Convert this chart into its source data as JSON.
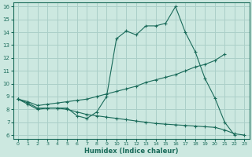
{
  "xlabel": "Humidex (Indice chaleur)",
  "bg_color": "#cce8e0",
  "grid_color": "#aacfc8",
  "line_color": "#1a6b5a",
  "xlim": [
    -0.5,
    23.5
  ],
  "ylim": [
    5.7,
    16.3
  ],
  "xticks": [
    0,
    1,
    2,
    3,
    4,
    5,
    6,
    7,
    8,
    9,
    10,
    11,
    12,
    13,
    14,
    15,
    16,
    17,
    18,
    19,
    20,
    21,
    22,
    23
  ],
  "yticks": [
    6,
    7,
    8,
    9,
    10,
    11,
    12,
    13,
    14,
    15,
    16
  ],
  "line1_x": [
    0,
    1,
    2,
    3,
    4,
    5,
    6,
    7,
    8,
    9,
    10,
    11,
    12,
    13,
    14,
    15,
    16,
    17,
    18,
    19,
    20,
    21,
    22
  ],
  "line1_y": [
    8.8,
    8.4,
    8.0,
    8.1,
    8.1,
    8.1,
    7.5,
    7.3,
    7.8,
    9.0,
    13.5,
    14.1,
    13.8,
    14.5,
    14.5,
    14.7,
    16.0,
    14.0,
    12.5,
    10.4,
    8.9,
    7.0,
    6.0
  ],
  "line2_x": [
    0,
    1,
    2,
    3,
    4,
    5,
    6,
    7,
    8,
    9,
    10,
    11,
    12,
    13,
    14,
    15,
    16,
    17,
    18,
    19,
    20,
    21
  ],
  "line2_y": [
    8.8,
    8.6,
    8.3,
    8.4,
    8.5,
    8.6,
    8.7,
    8.8,
    9.0,
    9.2,
    9.4,
    9.6,
    9.8,
    10.1,
    10.3,
    10.5,
    10.7,
    11.0,
    11.3,
    11.5,
    11.8,
    12.3
  ],
  "line3_x": [
    0,
    1,
    2,
    3,
    4,
    5,
    6,
    7,
    8,
    9,
    10,
    11,
    12,
    13,
    14,
    15,
    16,
    17,
    18,
    19,
    20,
    21,
    22,
    23
  ],
  "line3_y": [
    8.8,
    8.5,
    8.1,
    8.1,
    8.1,
    8.0,
    7.8,
    7.6,
    7.5,
    7.4,
    7.3,
    7.2,
    7.1,
    7.0,
    6.9,
    6.85,
    6.8,
    6.75,
    6.7,
    6.65,
    6.6,
    6.4,
    6.1,
    6.0
  ]
}
